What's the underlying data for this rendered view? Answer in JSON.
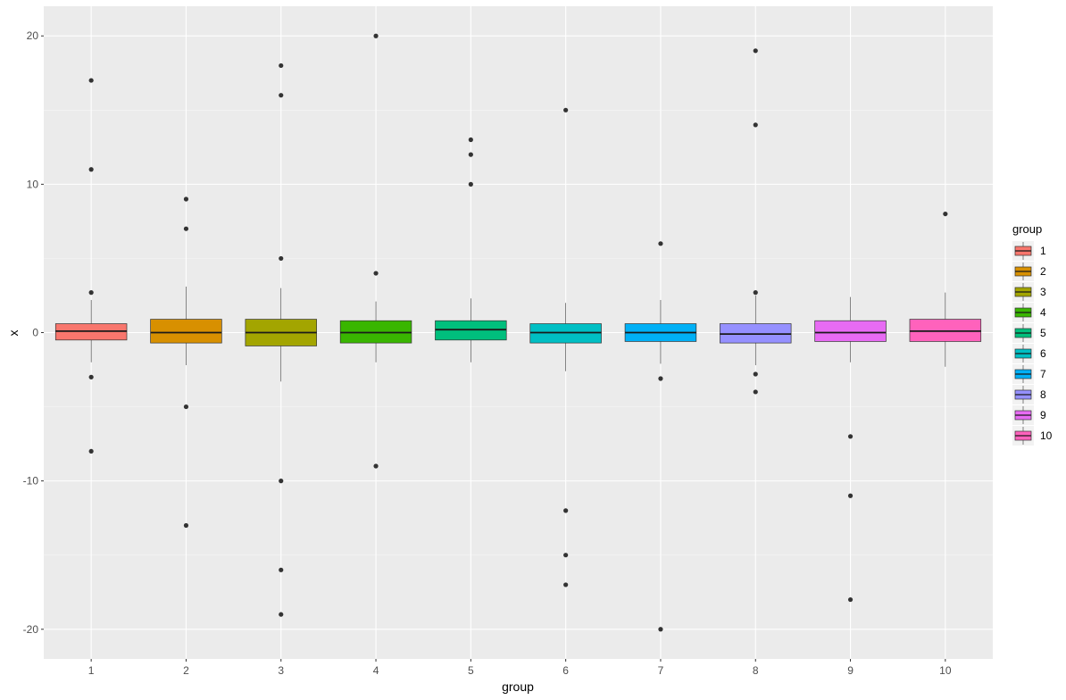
{
  "chart_data": {
    "type": "boxplot",
    "xlabel": "group",
    "ylabel": "x",
    "ylim": [
      -22,
      22
    ],
    "y_ticks": [
      -20,
      -10,
      0,
      10,
      20
    ],
    "y_tick_labels": [
      "-20",
      "-10",
      "0",
      "10",
      "20"
    ],
    "grid": true,
    "legend": {
      "title": "group",
      "position": "right"
    },
    "background": "#ebebeb",
    "categories": [
      "1",
      "2",
      "3",
      "4",
      "5",
      "6",
      "7",
      "8",
      "9",
      "10"
    ],
    "colors": [
      "#f8766d",
      "#d89000",
      "#a3a500",
      "#39b600",
      "#00bf7d",
      "#00bfc4",
      "#00b0f6",
      "#9590ff",
      "#e76bf3",
      "#ff62bc"
    ],
    "boxes": [
      {
        "group": "1",
        "whisker_low": -2.0,
        "q1": -0.5,
        "median": 0.1,
        "q3": 0.6,
        "whisker_high": 2.2,
        "outliers": [
          17,
          11,
          2.7,
          -3,
          -8
        ]
      },
      {
        "group": "2",
        "whisker_low": -2.2,
        "q1": -0.7,
        "median": 0.0,
        "q3": 0.9,
        "whisker_high": 3.1,
        "outliers": [
          9,
          7,
          -5,
          -13
        ]
      },
      {
        "group": "3",
        "whisker_low": -3.3,
        "q1": -0.9,
        "median": 0.0,
        "q3": 0.9,
        "whisker_high": 3.0,
        "outliers": [
          18,
          16,
          5,
          -10,
          -16,
          -19
        ]
      },
      {
        "group": "4",
        "whisker_low": -2.0,
        "q1": -0.7,
        "median": 0.0,
        "q3": 0.8,
        "whisker_high": 2.1,
        "outliers": [
          20,
          4,
          -9
        ]
      },
      {
        "group": "5",
        "whisker_low": -2.0,
        "q1": -0.5,
        "median": 0.2,
        "q3": 0.8,
        "whisker_high": 2.3,
        "outliers": [
          13,
          12,
          10
        ]
      },
      {
        "group": "6",
        "whisker_low": -2.6,
        "q1": -0.7,
        "median": 0.0,
        "q3": 0.6,
        "whisker_high": 2.0,
        "outliers": [
          15,
          -12,
          -15,
          -17
        ]
      },
      {
        "group": "7",
        "whisker_low": -2.1,
        "q1": -0.6,
        "median": 0.0,
        "q3": 0.6,
        "whisker_high": 2.2,
        "outliers": [
          6,
          -3.1,
          -20
        ]
      },
      {
        "group": "8",
        "whisker_low": -2.2,
        "q1": -0.7,
        "median": -0.1,
        "q3": 0.6,
        "whisker_high": 2.5,
        "outliers": [
          19,
          14,
          2.7,
          -2.8,
          -4
        ]
      },
      {
        "group": "9",
        "whisker_low": -2.0,
        "q1": -0.6,
        "median": 0.0,
        "q3": 0.8,
        "whisker_high": 2.4,
        "outliers": [
          -7,
          -11,
          -18
        ]
      },
      {
        "group": "10",
        "whisker_low": -2.3,
        "q1": -0.6,
        "median": 0.1,
        "q3": 0.9,
        "whisker_high": 2.7,
        "outliers": [
          8
        ]
      }
    ]
  }
}
